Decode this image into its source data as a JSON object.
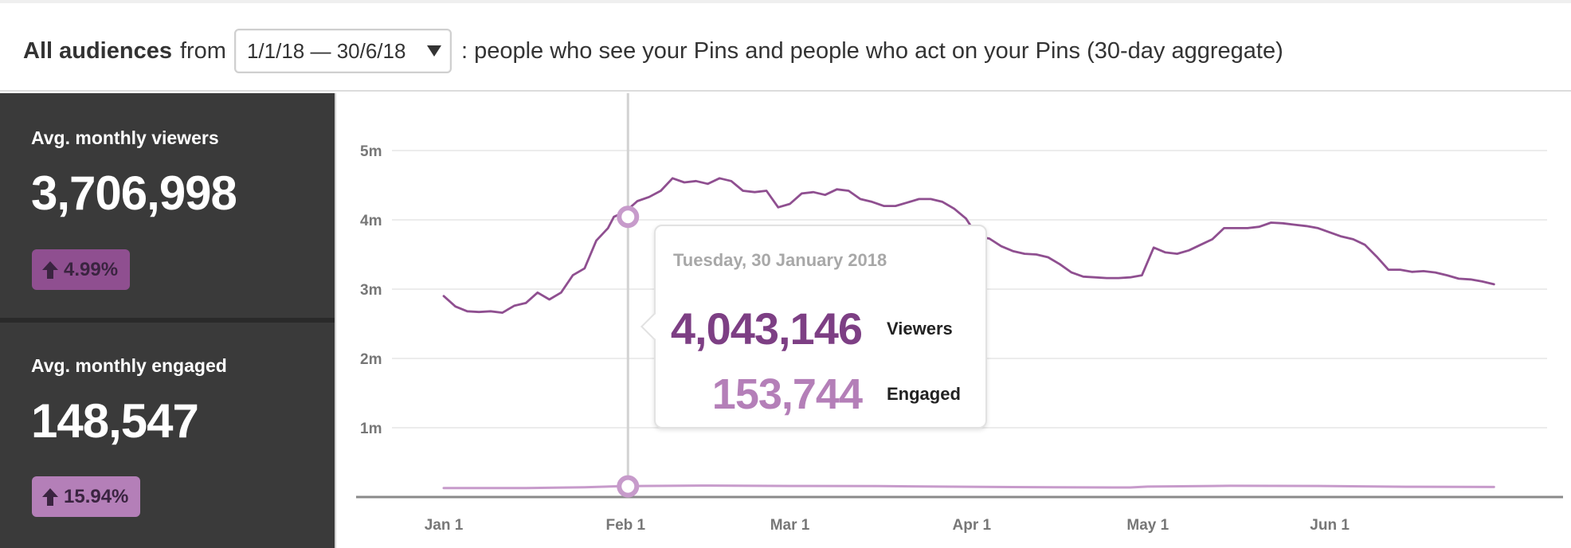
{
  "header": {
    "bold": "All audiences",
    "from": "from",
    "date_range": "1/1/18 — 30/6/18",
    "description": ": people who see your Pins and people who act on your Pins (30-day aggregate)"
  },
  "sidebar": {
    "viewers": {
      "label": "Avg. monthly viewers",
      "value": "3,706,998",
      "change": "4.99%"
    },
    "engaged": {
      "label": "Avg. monthly engaged",
      "value": "148,547",
      "change": "15.94%"
    }
  },
  "tooltip": {
    "date": "Tuesday, 30 January 2018",
    "viewers_value": "4,043,146",
    "viewers_label": "Viewers",
    "engaged_value": "153,744",
    "engaged_label": "Engaged"
  },
  "colors": {
    "viewers": "#8f4f90",
    "engaged": "#c79bcb",
    "sidebar": "#3a3a3a"
  },
  "chart_data": {
    "type": "line",
    "y_ticks": [
      "5m",
      "4m",
      "3m",
      "2m",
      "1m"
    ],
    "y_tick_values": [
      5000000,
      4000000,
      3000000,
      2000000,
      1000000
    ],
    "ylim": [
      0,
      5000000
    ],
    "x_ticks": [
      "Jan 1",
      "Feb 1",
      "Mar 1",
      "Apr 1",
      "May 1",
      "Jun 1"
    ],
    "x_tick_days": [
      1,
      32,
      60,
      91,
      121,
      152
    ],
    "xlim_days": [
      1,
      181
    ],
    "highlight": {
      "day": 30,
      "viewers": 4043146,
      "engaged": 153744
    },
    "series": [
      {
        "name": "Viewers",
        "x": [
          1,
          3,
          5,
          7,
          9,
          11,
          13,
          15,
          17,
          19,
          21,
          23,
          25,
          27,
          29,
          30,
          32,
          34,
          36,
          38,
          40,
          42,
          44,
          46,
          48,
          50,
          52,
          54,
          56,
          58,
          60,
          62,
          64,
          66,
          68,
          70,
          72,
          74,
          76,
          78,
          80,
          82,
          84,
          86,
          88,
          90,
          92,
          94,
          96,
          98,
          100,
          102,
          104,
          106,
          108,
          110,
          112,
          114,
          116,
          118,
          120,
          122,
          124,
          126,
          128,
          130,
          132,
          134,
          136,
          138,
          140,
          142,
          144,
          146,
          148,
          150,
          152,
          154,
          156,
          158,
          160,
          162,
          164,
          166,
          168,
          170,
          172,
          174,
          176,
          178,
          180
        ],
        "y": [
          2900000,
          2750000,
          2680000,
          2670000,
          2680000,
          2660000,
          2760000,
          2800000,
          2950000,
          2850000,
          2950000,
          3200000,
          3300000,
          3700000,
          3880000,
          4043146,
          4120000,
          4270000,
          4330000,
          4420000,
          4600000,
          4540000,
          4560000,
          4520000,
          4600000,
          4560000,
          4420000,
          4400000,
          4420000,
          4180000,
          4230000,
          4380000,
          4400000,
          4360000,
          4440000,
          4420000,
          4300000,
          4260000,
          4200000,
          4200000,
          4250000,
          4300000,
          4300000,
          4260000,
          4160000,
          4020000,
          3760000,
          3730000,
          3620000,
          3550000,
          3510000,
          3500000,
          3460000,
          3360000,
          3240000,
          3180000,
          3170000,
          3160000,
          3160000,
          3170000,
          3200000,
          3600000,
          3530000,
          3510000,
          3560000,
          3640000,
          3720000,
          3880000,
          3880000,
          3880000,
          3900000,
          3960000,
          3950000,
          3930000,
          3910000,
          3880000,
          3820000,
          3760000,
          3720000,
          3640000,
          3470000,
          3280000,
          3280000,
          3250000,
          3260000,
          3240000,
          3200000,
          3150000,
          3140000,
          3110000,
          3070000
        ]
      },
      {
        "name": "Engaged",
        "x": [
          1,
          15,
          25,
          30,
          35,
          45,
          60,
          75,
          90,
          105,
          118,
          121,
          135,
          150,
          165,
          180
        ],
        "y": [
          130000,
          130000,
          140000,
          153744,
          160000,
          165000,
          160000,
          158000,
          148000,
          140000,
          138000,
          150000,
          162000,
          160000,
          148000,
          145000
        ]
      }
    ]
  }
}
